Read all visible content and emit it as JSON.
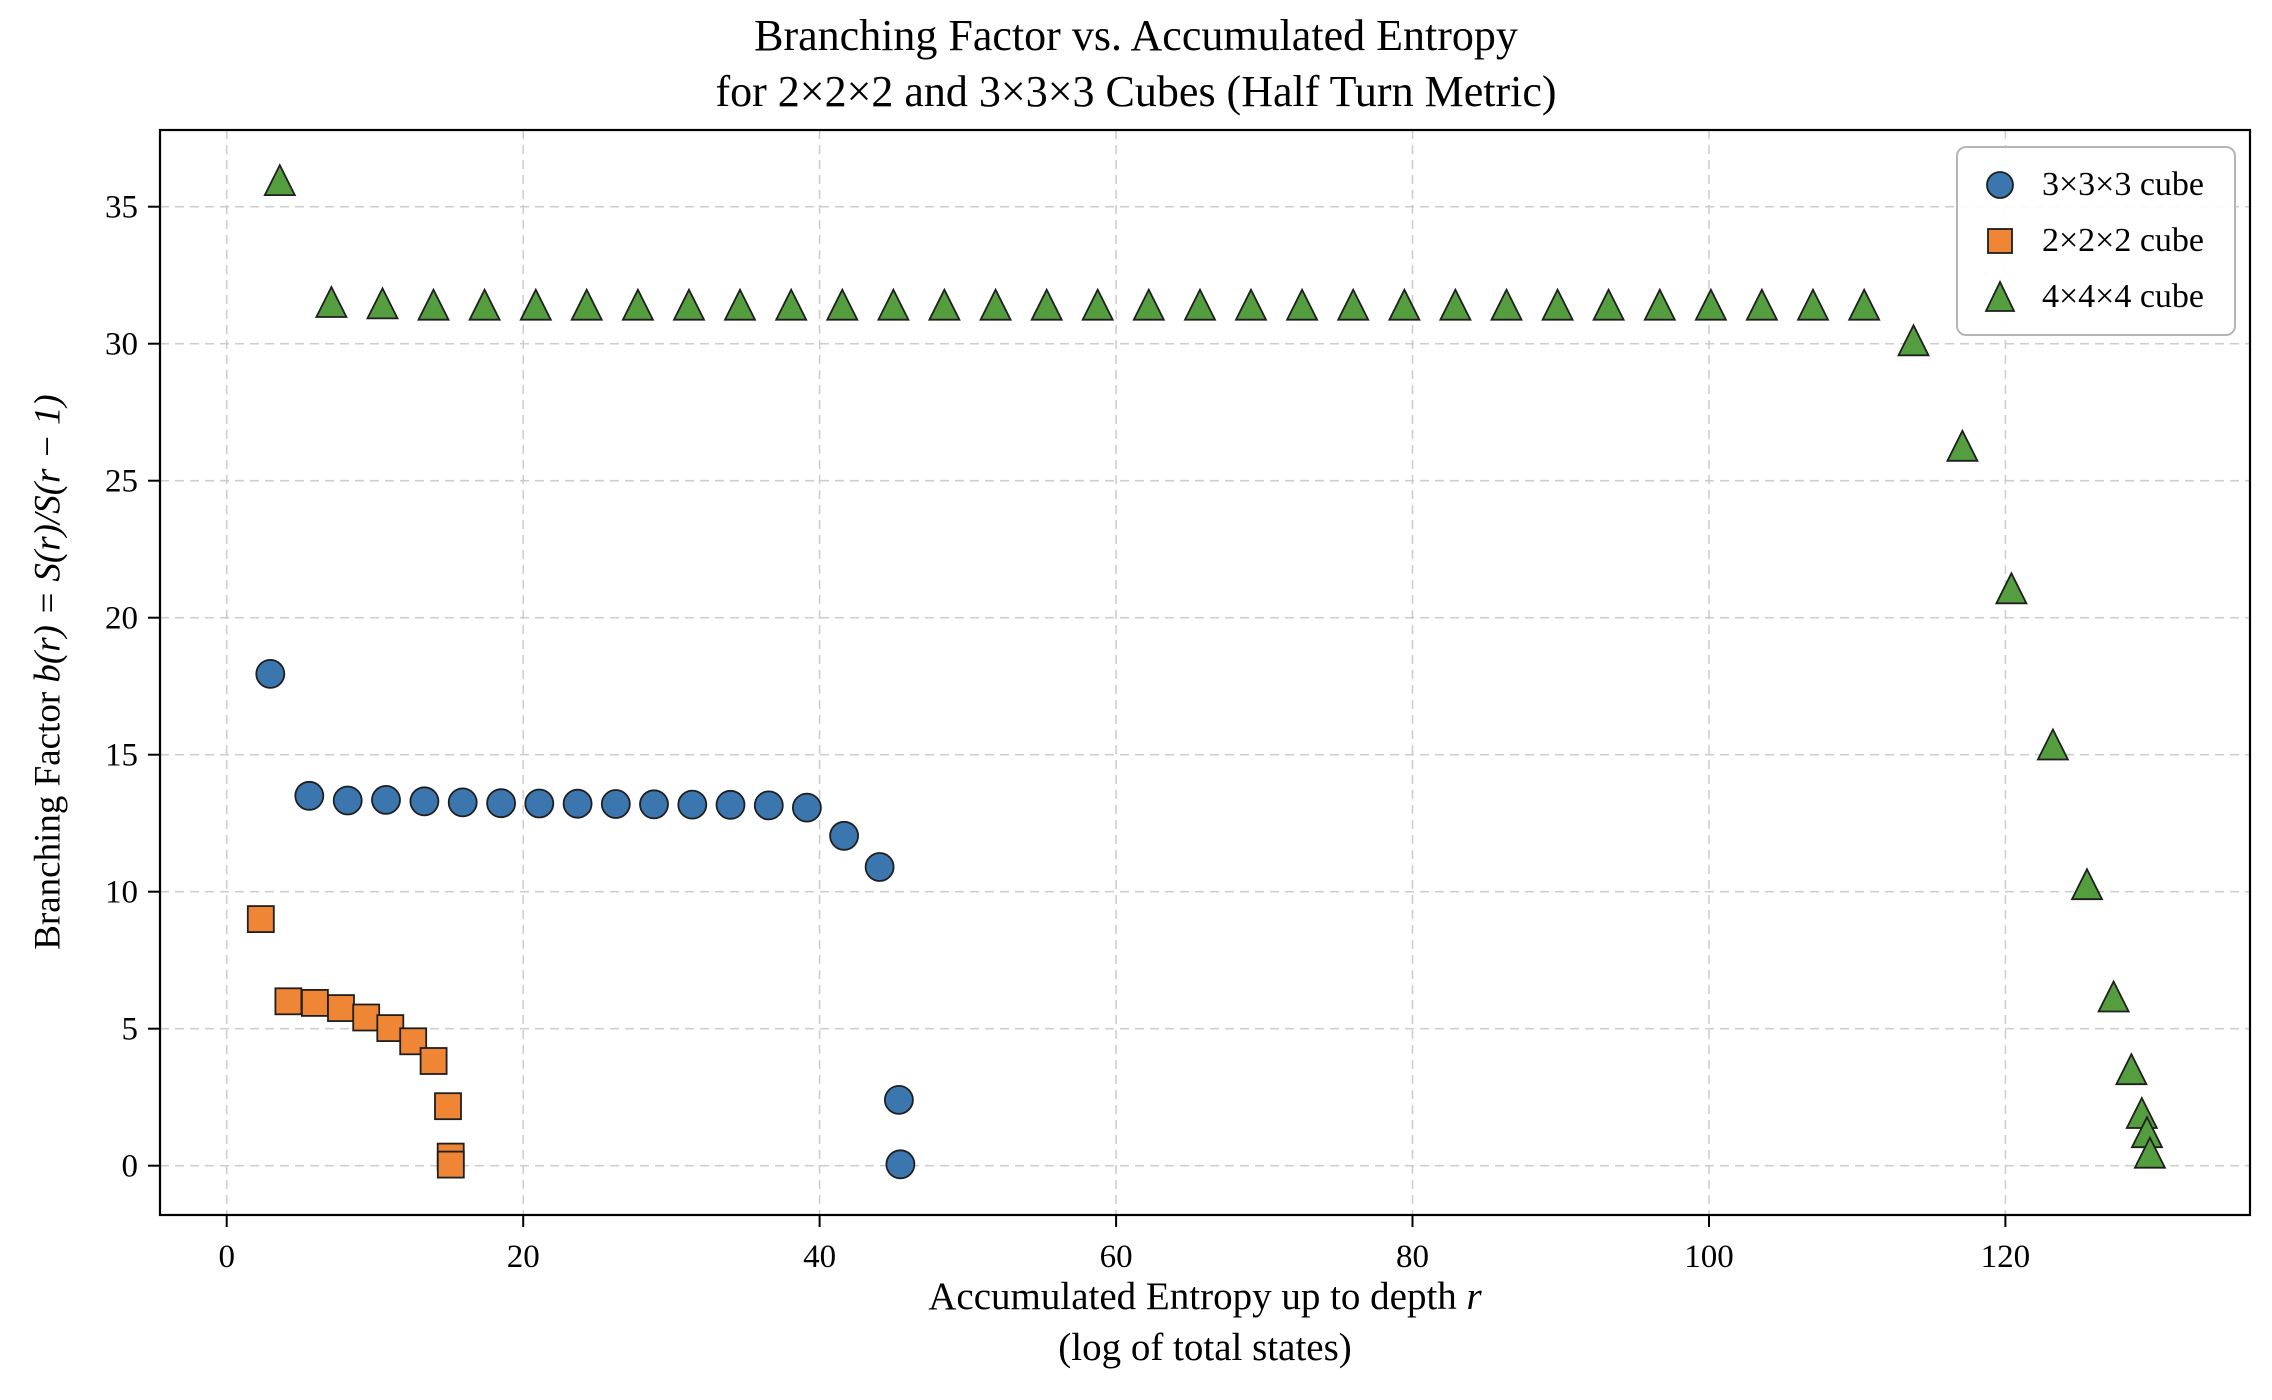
{
  "title": {
    "line1": "Branching Factor vs. Accumulated Entropy",
    "line2": "for 2×2×2 and 3×3×3 Cubes (Half Turn Metric)"
  },
  "xlabel": {
    "line1_prefix": "Accumulated Entropy up to depth ",
    "line1_var": "r",
    "line2": "(log of total states)"
  },
  "ylabel": {
    "prefix": "Branching Factor ",
    "math": "b(r) = S(r)/S(r − 1)"
  },
  "chart_data": {
    "type": "scatter",
    "title": "Branching Factor vs. Accumulated Entropy for 2×2×2 and 3×3×3 Cubes (Half Turn Metric)",
    "xlabel": "Accumulated Entropy up to depth r (log of total states)",
    "ylabel": "Branching Factor b(r) = S(r)/S(r − 1)",
    "xlim": [
      -4.5,
      136.5
    ],
    "ylim": [
      -1.8,
      37.8
    ],
    "x_ticks": [
      0,
      20,
      40,
      60,
      80,
      100,
      120
    ],
    "y_ticks": [
      0,
      5,
      10,
      15,
      20,
      25,
      30,
      35
    ],
    "grid": true,
    "grid_style": "dashed",
    "legend_position": "upper right",
    "series": [
      {
        "id": "3x3x3",
        "name": "3×3×3 cube",
        "marker": "circle",
        "color": "#3b76af",
        "points": [
          [
            2.94,
            17.95
          ],
          [
            5.57,
            13.5
          ],
          [
            8.16,
            13.33
          ],
          [
            10.75,
            13.35
          ],
          [
            13.34,
            13.3
          ],
          [
            15.92,
            13.26
          ],
          [
            18.51,
            13.23
          ],
          [
            21.09,
            13.22
          ],
          [
            23.67,
            13.21
          ],
          [
            26.25,
            13.2
          ],
          [
            28.83,
            13.19
          ],
          [
            31.41,
            13.18
          ],
          [
            33.99,
            13.17
          ],
          [
            36.57,
            13.15
          ],
          [
            39.14,
            13.07
          ],
          [
            41.65,
            12.04
          ],
          [
            44.05,
            10.9
          ],
          [
            45.35,
            2.4
          ],
          [
            45.45,
            0.05
          ]
        ]
      },
      {
        "id": "2x2x2",
        "name": "2×2×2 cube",
        "marker": "square",
        "color": "#ee8636",
        "points": [
          [
            2.3,
            9.0
          ],
          [
            4.16,
            6.0
          ],
          [
            5.95,
            5.94
          ],
          [
            7.71,
            5.75
          ],
          [
            9.41,
            5.41
          ],
          [
            11.04,
            5.02
          ],
          [
            12.58,
            4.54
          ],
          [
            13.96,
            3.82
          ],
          [
            14.93,
            2.17
          ],
          [
            15.11,
            0.33
          ],
          [
            15.12,
            0.04
          ]
        ]
      },
      {
        "id": "4x4x4",
        "name": "4×4×4 cube",
        "marker": "triangle",
        "color": "#549e3f",
        "points": [
          [
            3.58,
            35.9
          ],
          [
            7.06,
            31.45
          ],
          [
            10.51,
            31.4
          ],
          [
            13.95,
            31.35
          ],
          [
            17.4,
            31.35
          ],
          [
            20.85,
            31.35
          ],
          [
            24.29,
            31.35
          ],
          [
            27.74,
            31.35
          ],
          [
            31.19,
            31.35
          ],
          [
            34.63,
            31.35
          ],
          [
            38.08,
            31.35
          ],
          [
            41.53,
            31.35
          ],
          [
            44.98,
            31.35
          ],
          [
            48.42,
            31.35
          ],
          [
            51.87,
            31.35
          ],
          [
            55.32,
            31.35
          ],
          [
            58.76,
            31.35
          ],
          [
            62.21,
            31.35
          ],
          [
            65.66,
            31.35
          ],
          [
            69.1,
            31.35
          ],
          [
            72.55,
            31.35
          ],
          [
            76.0,
            31.35
          ],
          [
            79.45,
            31.35
          ],
          [
            82.89,
            31.35
          ],
          [
            86.34,
            31.35
          ],
          [
            89.79,
            31.35
          ],
          [
            93.23,
            31.35
          ],
          [
            96.68,
            31.35
          ],
          [
            100.13,
            31.35
          ],
          [
            103.57,
            31.35
          ],
          [
            107.02,
            31.35
          ],
          [
            110.47,
            31.35
          ],
          [
            113.8,
            30.05
          ],
          [
            117.1,
            26.2
          ],
          [
            120.4,
            21.0
          ],
          [
            123.2,
            15.3
          ],
          [
            125.5,
            10.2
          ],
          [
            127.3,
            6.1
          ],
          [
            128.5,
            3.45
          ],
          [
            129.2,
            1.85
          ],
          [
            129.55,
            1.15
          ],
          [
            129.75,
            0.4
          ]
        ]
      }
    ]
  }
}
